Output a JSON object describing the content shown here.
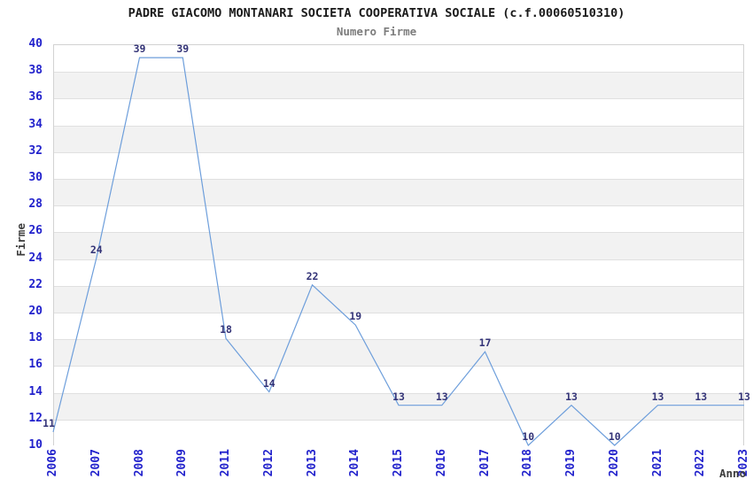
{
  "header": {
    "title": "PADRE GIACOMO MONTANARI SOCIETA COOPERATIVA SOCIALE (c.f.00060510310)",
    "subtitle": "Numero Firme"
  },
  "chart_data": {
    "type": "line",
    "title": "PADRE GIACOMO MONTANARI SOCIETA COOPERATIVA SOCIALE (c.f.00060510310)",
    "subtitle": "Numero Firme",
    "xlabel": "Anno",
    "ylabel": "Firme",
    "categories": [
      "2006",
      "2007",
      "2008",
      "2009",
      "2011",
      "2012",
      "2013",
      "2014",
      "2015",
      "2016",
      "2017",
      "2018",
      "2019",
      "2020",
      "2021",
      "2022",
      "2023"
    ],
    "values": [
      11,
      24,
      39,
      39,
      18,
      14,
      22,
      19,
      13,
      13,
      17,
      10,
      13,
      10,
      13,
      13,
      13
    ],
    "point_labels": [
      "11",
      "24",
      "39",
      "39",
      "18",
      "14",
      "22",
      "19",
      "13",
      "13",
      "17",
      "10",
      "13",
      "10",
      "13",
      "13",
      "13"
    ],
    "ylim": [
      10,
      40
    ],
    "yticks": [
      10,
      12,
      14,
      16,
      18,
      20,
      22,
      24,
      26,
      28,
      30,
      32,
      34,
      36,
      38,
      40
    ],
    "grid": true,
    "band_fill": "alternating",
    "legend": "none"
  },
  "colors": {
    "line": "#6d9edb",
    "tick_label": "#2222cc",
    "point_label": "#333377",
    "band_gray": "#f2f2f2",
    "gridline": "#e0e0e0",
    "plot_border": "#d2d2d2",
    "title": "#1a1a1a",
    "subtitle": "#7d7d7d",
    "axis_title": "#3d3d3d"
  }
}
